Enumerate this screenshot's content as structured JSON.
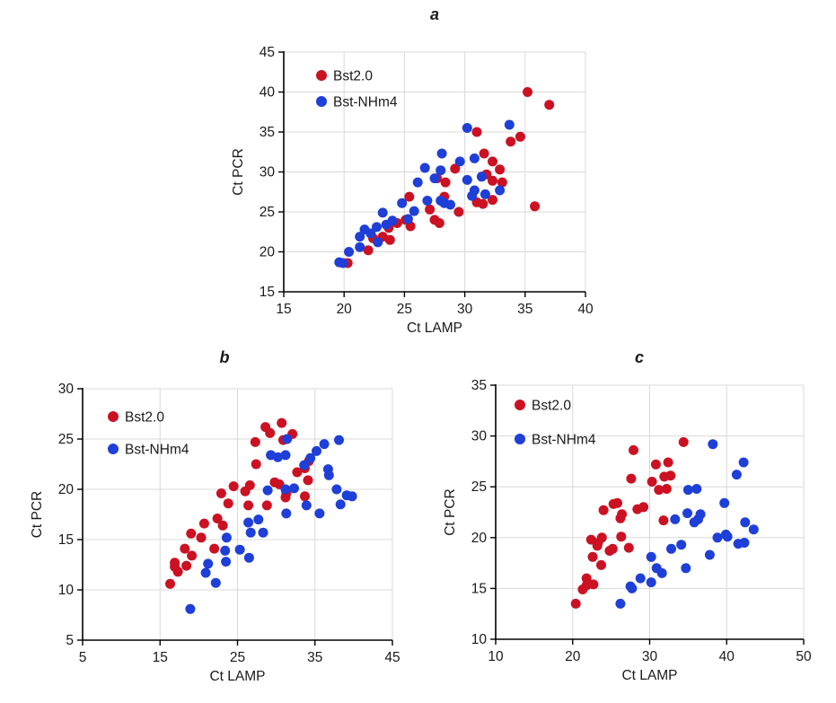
{
  "page": {
    "background": "#ffffff"
  },
  "colors": {
    "series_red": "#CC1122",
    "series_blue": "#1E3FD8",
    "grid": "#D8D8D8",
    "axis": "#000000",
    "text": "#1a1a1a"
  },
  "legend": {
    "series1_label": "Bst2.0",
    "series2_label": "Bst-NHm4",
    "marker": "dot"
  },
  "chart_data": [
    {
      "id": "a",
      "type": "scatter",
      "title": "a",
      "xlabel": "Ct LAMP",
      "ylabel": "Ct PCR",
      "xlim": [
        15,
        40
      ],
      "xticks": [
        15,
        20,
        25,
        30,
        35,
        40
      ],
      "ylim": [
        15,
        45
      ],
      "yticks": [
        15,
        20,
        25,
        30,
        35,
        40,
        45
      ],
      "grid": true,
      "legend_position": "top-left",
      "series": [
        {
          "name": "Bst2.0",
          "color": "#CC1122",
          "points": [
            [
              20.3,
              18.6
            ],
            [
              22.0,
              20.2
            ],
            [
              22.4,
              21.7
            ],
            [
              23.2,
              21.9
            ],
            [
              23.8,
              21.5
            ],
            [
              23.7,
              23.0
            ],
            [
              24.4,
              23.6
            ],
            [
              25.1,
              24.0
            ],
            [
              25.5,
              23.2
            ],
            [
              25.4,
              26.9
            ],
            [
              27.1,
              25.3
            ],
            [
              27.5,
              24.0
            ],
            [
              27.9,
              23.6
            ],
            [
              28.3,
              26.9
            ],
            [
              28.4,
              28.7
            ],
            [
              27.7,
              29.2
            ],
            [
              29.2,
              30.4
            ],
            [
              29.5,
              25.0
            ],
            [
              31.0,
              26.2
            ],
            [
              31.5,
              26.0
            ],
            [
              32.3,
              26.5
            ],
            [
              31.8,
              29.7
            ],
            [
              32.3,
              28.9
            ],
            [
              33.1,
              28.7
            ],
            [
              32.9,
              30.3
            ],
            [
              32.3,
              31.3
            ],
            [
              31.6,
              32.3
            ],
            [
              31.0,
              35.0
            ],
            [
              33.8,
              33.8
            ],
            [
              34.6,
              34.4
            ],
            [
              35.2,
              40.0
            ],
            [
              37.0,
              38.4
            ],
            [
              35.8,
              25.7
            ]
          ]
        },
        {
          "name": "Bst-NHm4",
          "color": "#1E3FD8",
          "points": [
            [
              19.6,
              18.7
            ],
            [
              19.9,
              18.6
            ],
            [
              20.4,
              20.0
            ],
            [
              21.3,
              20.6
            ],
            [
              21.3,
              21.9
            ],
            [
              21.7,
              22.8
            ],
            [
              22.2,
              22.3
            ],
            [
              22.7,
              23.1
            ],
            [
              22.8,
              21.2
            ],
            [
              23.5,
              23.4
            ],
            [
              24.0,
              23.9
            ],
            [
              23.2,
              24.9
            ],
            [
              24.8,
              26.1
            ],
            [
              25.3,
              24.1
            ],
            [
              25.8,
              25.1
            ],
            [
              26.9,
              26.4
            ],
            [
              28.0,
              26.4
            ],
            [
              28.3,
              26.1
            ],
            [
              28.8,
              25.9
            ],
            [
              26.1,
              28.7
            ],
            [
              27.5,
              29.2
            ],
            [
              28.0,
              30.2
            ],
            [
              26.7,
              30.5
            ],
            [
              28.1,
              32.3
            ],
            [
              29.6,
              31.3
            ],
            [
              30.8,
              31.7
            ],
            [
              30.2,
              29.0
            ],
            [
              31.4,
              29.4
            ],
            [
              30.8,
              27.7
            ],
            [
              30.6,
              27.0
            ],
            [
              31.7,
              27.2
            ],
            [
              32.9,
              27.7
            ],
            [
              30.2,
              35.5
            ],
            [
              33.7,
              35.9
            ]
          ]
        }
      ]
    },
    {
      "id": "b",
      "type": "scatter",
      "title": "b",
      "xlabel": "Ct LAMP",
      "ylabel": "Ct PCR",
      "xlim": [
        5,
        45
      ],
      "xticks": [
        5,
        15,
        25,
        35,
        45
      ],
      "ylim": [
        5,
        30
      ],
      "yticks": [
        5,
        10,
        15,
        20,
        25,
        30
      ],
      "grid": true,
      "legend_position": "top-left",
      "series": [
        {
          "name": "Bst2.0",
          "color": "#CC1122",
          "points": [
            [
              16.3,
              10.6
            ],
            [
              16.9,
              12.7
            ],
            [
              16.9,
              12.3
            ],
            [
              17.3,
              11.8
            ],
            [
              18.2,
              14.1
            ],
            [
              18.4,
              12.4
            ],
            [
              19.1,
              13.4
            ],
            [
              19.0,
              15.6
            ],
            [
              20.3,
              15.2
            ],
            [
              20.7,
              16.6
            ],
            [
              22.0,
              14.1
            ],
            [
              22.4,
              17.1
            ],
            [
              23.1,
              16.4
            ],
            [
              22.9,
              19.6
            ],
            [
              23.8,
              18.6
            ],
            [
              24.5,
              20.3
            ],
            [
              26.0,
              19.8
            ],
            [
              26.6,
              20.4
            ],
            [
              26.4,
              18.4
            ],
            [
              27.4,
              22.5
            ],
            [
              27.3,
              24.7
            ],
            [
              28.6,
              26.2
            ],
            [
              29.2,
              25.6
            ],
            [
              30.7,
              26.6
            ],
            [
              30.9,
              24.9
            ],
            [
              28.8,
              18.4
            ],
            [
              29.8,
              20.7
            ],
            [
              30.4,
              20.5
            ],
            [
              31.3,
              19.6
            ],
            [
              31.2,
              19.2
            ],
            [
              32.1,
              25.5
            ],
            [
              32.7,
              21.7
            ],
            [
              33.7,
              22.1
            ],
            [
              34.1,
              20.9
            ],
            [
              33.7,
              19.3
            ],
            [
              34.2,
              22.8
            ]
          ]
        },
        {
          "name": "Bst-NHm4",
          "color": "#1E3FD8",
          "points": [
            [
              18.9,
              8.1
            ],
            [
              20.9,
              11.7
            ],
            [
              21.2,
              12.6
            ],
            [
              22.2,
              10.7
            ],
            [
              23.4,
              13.9
            ],
            [
              23.5,
              12.8
            ],
            [
              23.6,
              15.2
            ],
            [
              25.3,
              14.0
            ],
            [
              26.5,
              13.2
            ],
            [
              26.4,
              16.7
            ],
            [
              26.7,
              15.7
            ],
            [
              27.7,
              17.0
            ],
            [
              28.3,
              15.7
            ],
            [
              28.9,
              19.9
            ],
            [
              29.3,
              23.4
            ],
            [
              30.2,
              23.2
            ],
            [
              31.2,
              23.4
            ],
            [
              31.3,
              17.6
            ],
            [
              31.2,
              20.0
            ],
            [
              31.4,
              25.0
            ],
            [
              32.3,
              20.1
            ],
            [
              33.6,
              22.4
            ],
            [
              33.9,
              18.4
            ],
            [
              34.4,
              23.1
            ],
            [
              35.2,
              23.8
            ],
            [
              35.6,
              17.6
            ],
            [
              36.2,
              24.5
            ],
            [
              36.7,
              22.0
            ],
            [
              36.8,
              21.4
            ],
            [
              37.8,
              20.0
            ],
            [
              38.1,
              24.9
            ],
            [
              38.3,
              18.5
            ],
            [
              39.1,
              19.4
            ],
            [
              39.8,
              19.3
            ]
          ]
        }
      ]
    },
    {
      "id": "c",
      "type": "scatter",
      "title": "c",
      "xlabel": "Ct LAMP",
      "ylabel": "Ct PCR",
      "xlim": [
        10,
        50
      ],
      "xticks": [
        10,
        20,
        30,
        40,
        50
      ],
      "ylim": [
        10,
        35
      ],
      "yticks": [
        10,
        15,
        20,
        25,
        30,
        35
      ],
      "grid": true,
      "legend_position": "top-left",
      "series": [
        {
          "name": "Bst2.0",
          "color": "#CC1122",
          "points": [
            [
              20.4,
              13.5
            ],
            [
              21.3,
              14.9
            ],
            [
              21.8,
              15.3
            ],
            [
              21.8,
              16.0
            ],
            [
              22.7,
              15.4
            ],
            [
              22.6,
              18.1
            ],
            [
              22.4,
              19.8
            ],
            [
              23.2,
              19.2
            ],
            [
              23.3,
              19.5
            ],
            [
              23.7,
              17.3
            ],
            [
              23.8,
              20.0
            ],
            [
              24.0,
              22.7
            ],
            [
              24.8,
              18.7
            ],
            [
              25.2,
              18.9
            ],
            [
              25.3,
              23.3
            ],
            [
              25.8,
              23.4
            ],
            [
              26.2,
              21.9
            ],
            [
              26.4,
              22.3
            ],
            [
              26.3,
              20.1
            ],
            [
              27.3,
              19.0
            ],
            [
              27.6,
              25.8
            ],
            [
              27.9,
              28.6
            ],
            [
              28.4,
              22.8
            ],
            [
              29.2,
              23.0
            ],
            [
              30.3,
              25.5
            ],
            [
              30.8,
              27.2
            ],
            [
              31.2,
              24.7
            ],
            [
              31.8,
              21.7
            ],
            [
              31.9,
              26.0
            ],
            [
              32.2,
              24.8
            ],
            [
              32.4,
              27.4
            ],
            [
              32.7,
              26.1
            ],
            [
              34.4,
              29.4
            ]
          ]
        },
        {
          "name": "Bst-NHm4",
          "color": "#1E3FD8",
          "points": [
            [
              26.2,
              13.5
            ],
            [
              27.5,
              15.2
            ],
            [
              27.7,
              15.0
            ],
            [
              28.8,
              16.0
            ],
            [
              30.2,
              15.6
            ],
            [
              30.2,
              18.1
            ],
            [
              30.9,
              17.0
            ],
            [
              31.6,
              16.5
            ],
            [
              32.8,
              18.9
            ],
            [
              33.3,
              21.8
            ],
            [
              34.1,
              19.3
            ],
            [
              34.7,
              17.0
            ],
            [
              34.9,
              22.4
            ],
            [
              35.0,
              24.7
            ],
            [
              36.1,
              24.8
            ],
            [
              35.8,
              21.5
            ],
            [
              36.3,
              21.8
            ],
            [
              36.6,
              22.3
            ],
            [
              37.8,
              18.3
            ],
            [
              38.2,
              29.2
            ],
            [
              38.8,
              20.0
            ],
            [
              39.7,
              23.4
            ],
            [
              39.9,
              20.3
            ],
            [
              40.1,
              20.1
            ],
            [
              41.3,
              26.2
            ],
            [
              41.5,
              19.4
            ],
            [
              42.2,
              27.4
            ],
            [
              42.3,
              19.5
            ],
            [
              42.4,
              21.5
            ],
            [
              43.5,
              20.8
            ]
          ]
        }
      ]
    }
  ]
}
